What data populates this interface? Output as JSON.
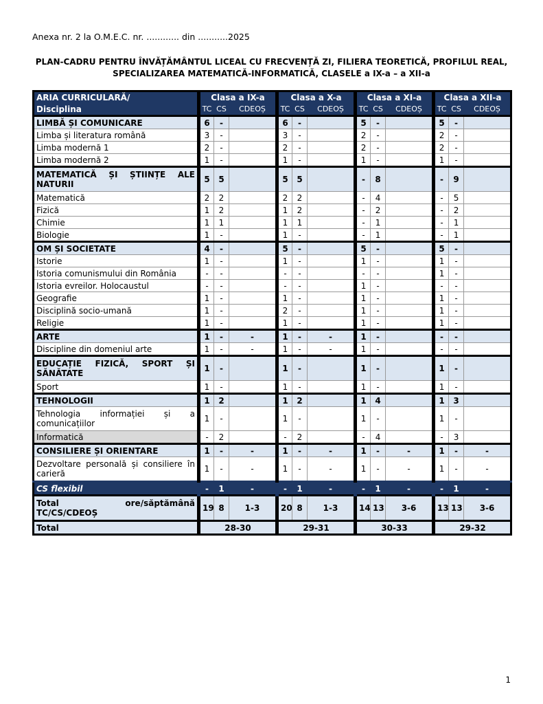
{
  "header": {
    "anexa": "Anexa nr. 2 la O.M.E.C. nr. ............ din ...........2025"
  },
  "title": {
    "line1": "PLAN-CADRU PENTRU ÎNVĂȚĂMÂNTUL LICEAL CU FRECVENȚĂ ZI, FILIERA TEORETICĂ, PROFILUL REAL,",
    "line2": "SPECIALIZAREA MATEMATICĂ-INFORMATICĂ, CLASELE a IX-a – a XII-a"
  },
  "table": {
    "header_label_1": "ARIA CURRICULARĂ/",
    "header_label_2": "Disciplina",
    "classes": [
      "Clasa a IX-a",
      "Clasa a X-a",
      "Clasa a XI-a",
      "Clasa a XII-a"
    ],
    "subcolumns": [
      "TC",
      "CS",
      "CDEOȘ"
    ],
    "colors": {
      "header_bg": "#1f3864",
      "section_bg": "#dbe5f1",
      "highlight_grey": "#d9d9d9"
    },
    "rows": [
      {
        "type": "section",
        "label": "LIMBĂ ȘI COMUNICARE",
        "values": [
          "6",
          "-",
          "",
          "6",
          "-",
          "",
          "5",
          "-",
          "",
          "5",
          "-",
          ""
        ]
      },
      {
        "type": "subject",
        "label": "Limba și literatura română",
        "values": [
          "3",
          "-",
          "",
          "3",
          "-",
          "",
          "2",
          "-",
          "",
          "2",
          "-",
          ""
        ]
      },
      {
        "type": "subject",
        "label": "Limba modernă 1",
        "values": [
          "2",
          "-",
          "",
          "2",
          "-",
          "",
          "2",
          "-",
          "",
          "2",
          "-",
          ""
        ]
      },
      {
        "type": "subject",
        "label": "Limba modernă 2",
        "values": [
          "1",
          "-",
          "",
          "1",
          "-",
          "",
          "1",
          "-",
          "",
          "1",
          "-",
          ""
        ]
      },
      {
        "type": "section",
        "label": "MATEMATICĂ ȘI ȘTIINȚE ALE NATURII",
        "tall": true,
        "values": [
          "5",
          "5",
          "",
          "5",
          "5",
          "",
          "-",
          "8",
          "",
          "-",
          "9",
          ""
        ]
      },
      {
        "type": "subject",
        "label": "Matematică",
        "values": [
          "2",
          "2",
          "",
          "2",
          "2",
          "",
          "-",
          "4",
          "",
          "-",
          "5",
          ""
        ]
      },
      {
        "type": "subject",
        "label": "Fizică",
        "values": [
          "1",
          "2",
          "",
          "1",
          "2",
          "",
          "-",
          "2",
          "",
          "-",
          "2",
          ""
        ]
      },
      {
        "type": "subject",
        "label": "Chimie",
        "values": [
          "1",
          "1",
          "",
          "1",
          "1",
          "",
          "-",
          "1",
          "",
          "-",
          "1",
          ""
        ]
      },
      {
        "type": "subject",
        "label": "Biologie",
        "values": [
          "1",
          "-",
          "",
          "1",
          "-",
          "",
          "-",
          "1",
          "",
          "-",
          "1",
          ""
        ]
      },
      {
        "type": "section",
        "label": "OM ȘI SOCIETATE",
        "values": [
          "4",
          "-",
          "",
          "5",
          "-",
          "",
          "5",
          "-",
          "",
          "5",
          "-",
          ""
        ]
      },
      {
        "type": "subject",
        "label": "Istorie",
        "values": [
          "1",
          "-",
          "",
          "1",
          "-",
          "",
          "1",
          "-",
          "",
          "1",
          "-",
          ""
        ]
      },
      {
        "type": "subject",
        "label": "Istoria comunismului din România",
        "values": [
          "-",
          "-",
          "",
          "-",
          "-",
          "",
          "-",
          "-",
          "",
          "1",
          "-",
          ""
        ]
      },
      {
        "type": "subject",
        "label": "Istoria evreilor. Holocaustul",
        "values": [
          "-",
          "-",
          "",
          "-",
          "-",
          "",
          "1",
          "-",
          "",
          "-",
          "-",
          ""
        ]
      },
      {
        "type": "subject",
        "label": "Geografie",
        "values": [
          "1",
          "-",
          "",
          "1",
          "-",
          "",
          "1",
          "-",
          "",
          "1",
          "-",
          ""
        ]
      },
      {
        "type": "subject",
        "label": "Disciplină socio-umană",
        "values": [
          "1",
          "-",
          "",
          "2",
          "-",
          "",
          "1",
          "-",
          "",
          "1",
          "-",
          ""
        ]
      },
      {
        "type": "subject",
        "label": "Religie",
        "values": [
          "1",
          "-",
          "",
          "1",
          "-",
          "",
          "1",
          "-",
          "",
          "1",
          "-",
          ""
        ]
      },
      {
        "type": "section",
        "label": "ARTE",
        "values": [
          "1",
          "-",
          "-",
          "1",
          "-",
          "-",
          "1",
          "-",
          "",
          "-",
          "-",
          ""
        ]
      },
      {
        "type": "subject",
        "label": "Discipline din domeniul arte",
        "values": [
          "1",
          "-",
          "-",
          "1",
          "-",
          "-",
          "1",
          "-",
          "",
          "-",
          "-",
          ""
        ]
      },
      {
        "type": "section",
        "label": "EDUCAȚIE FIZICĂ, SPORT ȘI SĂNĂTATE",
        "tall": true,
        "values": [
          "1",
          "-",
          "",
          "1",
          "-",
          "",
          "1",
          "-",
          "",
          "1",
          "-",
          ""
        ]
      },
      {
        "type": "subject",
        "label": "Sport",
        "values": [
          "1",
          "-",
          "",
          "1",
          "-",
          "",
          "1",
          "-",
          "",
          "1",
          "-",
          ""
        ]
      },
      {
        "type": "section",
        "label": "TEHNOLOGII",
        "values": [
          "1",
          "2",
          "",
          "1",
          "2",
          "",
          "1",
          "4",
          "",
          "1",
          "3",
          ""
        ]
      },
      {
        "type": "subject",
        "label": "Tehnologia informației și a comunicațiilor",
        "tall": true,
        "values": [
          "1",
          "-",
          "",
          "1",
          "-",
          "",
          "1",
          "-",
          "",
          "1",
          "-",
          ""
        ]
      },
      {
        "type": "subject",
        "label": "Informatică",
        "grey": true,
        "values": [
          "-",
          "2",
          "",
          "-",
          "2",
          "",
          "-",
          "4",
          "",
          "-",
          "3",
          ""
        ]
      },
      {
        "type": "section",
        "label": "CONSILIERE ȘI ORIENTARE",
        "values": [
          "1",
          "-",
          "-",
          "1",
          "-",
          "-",
          "1",
          "-",
          "-",
          "1",
          "-",
          "-"
        ]
      },
      {
        "type": "subject",
        "label": "Dezvoltare personală și consiliere în carieră",
        "tall": true,
        "values": [
          "1",
          "-",
          "-",
          "1",
          "-",
          "-",
          "1",
          "-",
          "-",
          "1",
          "-",
          "-"
        ]
      },
      {
        "type": "flex",
        "label": "CS flexibil",
        "values": [
          "-",
          "1",
          "-",
          "-",
          "1",
          "-",
          "-",
          "1",
          "-",
          "-",
          "1",
          "-"
        ]
      },
      {
        "type": "total",
        "label": "Total ore/săptămână TC/CS/CDEOȘ",
        "tall": true,
        "values": [
          "19",
          "8",
          "1-3",
          "20",
          "8",
          "1-3",
          "14",
          "13",
          "3-6",
          "13",
          "13",
          "3-6"
        ]
      }
    ],
    "grand_total": {
      "label": "Total",
      "values": [
        "28-30",
        "29-31",
        "30-33",
        "29-32"
      ]
    }
  },
  "footer": {
    "page_number": "1"
  }
}
